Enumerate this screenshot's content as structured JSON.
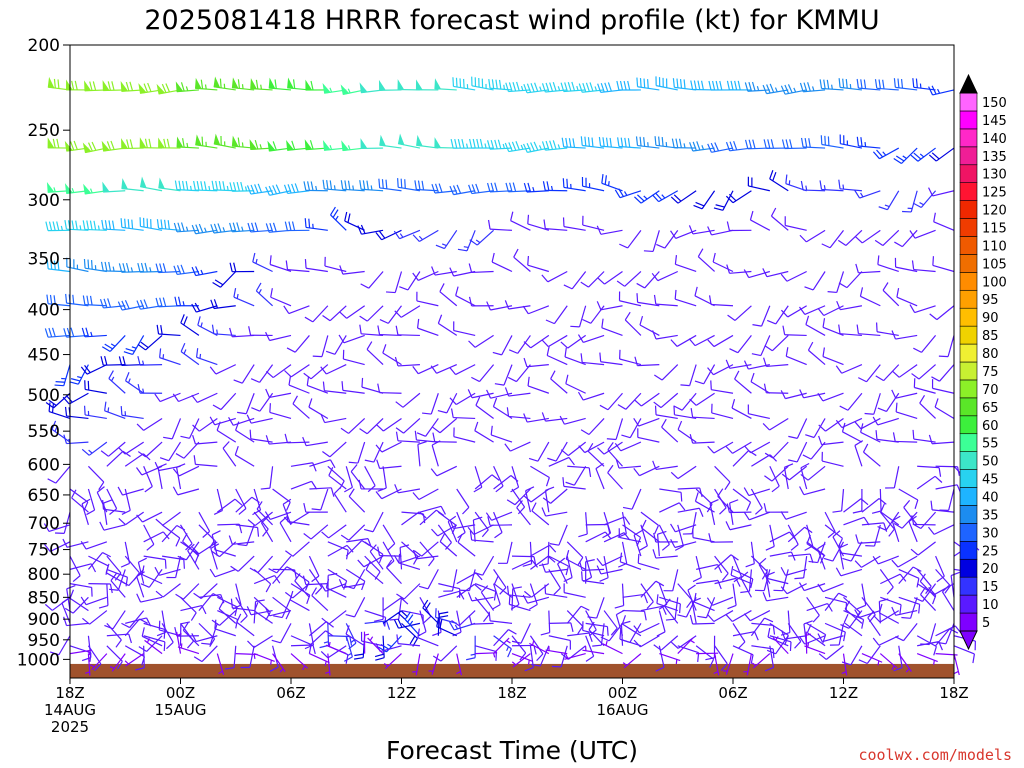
{
  "chart_data": {
    "type": "wind_barb_time_height",
    "title": "2025081418 HRRR forecast wind profile (kt) for KMMU",
    "xlabel": "Forecast Time (UTC)",
    "ylabel": "",
    "units": "kt",
    "y_ticks": [
      "200",
      "250",
      "300",
      "350",
      "400",
      "450",
      "500",
      "550",
      "600",
      "650",
      "700",
      "750",
      "800",
      "850",
      "900",
      "950",
      "1000"
    ],
    "y_levels": [
      200,
      250,
      300,
      350,
      400,
      450,
      500,
      550,
      600,
      650,
      700,
      750,
      800,
      850,
      900,
      950,
      1000
    ],
    "y_axis": "log-pressure, inverted (hPa)",
    "ylim": [
      200,
      1050
    ],
    "x_ticks": [
      {
        "hour": 0,
        "line1": "18Z",
        "line2": "14AUG",
        "line3": "2025"
      },
      {
        "hour": 6,
        "line1": "00Z",
        "line2": "15AUG",
        "line3": ""
      },
      {
        "hour": 12,
        "line1": "06Z",
        "line2": "",
        "line3": ""
      },
      {
        "hour": 18,
        "line1": "12Z",
        "line2": "",
        "line3": ""
      },
      {
        "hour": 24,
        "line1": "18Z",
        "line2": "",
        "line3": ""
      },
      {
        "hour": 30,
        "line1": "00Z",
        "line2": "16AUG",
        "line3": ""
      },
      {
        "hour": 36,
        "line1": "06Z",
        "line2": "",
        "line3": ""
      },
      {
        "hour": 42,
        "line1": "12Z",
        "line2": "",
        "line3": ""
      },
      {
        "hour": 48,
        "line1": "18Z",
        "line2": "",
        "line3": ""
      }
    ],
    "xlim_hours": [
      0,
      48
    ],
    "levels_hpa": [
      225,
      262,
      293,
      325,
      362,
      396,
      428,
      462,
      498,
      532,
      566,
      603,
      640,
      680,
      703,
      735,
      763,
      790,
      820,
      850,
      880,
      910,
      940,
      965,
      985
    ],
    "speed_profile": [
      {
        "p": 225,
        "speeds": [
          68,
          68,
          62,
          50,
          45,
          42,
          38,
          35,
          25
        ]
      },
      {
        "p": 262,
        "speeds": [
          68,
          68,
          62,
          50,
          45,
          40,
          32,
          28,
          22
        ]
      },
      {
        "p": 293,
        "speeds": [
          55,
          48,
          40,
          32,
          28,
          25,
          20,
          15,
          12
        ]
      },
      {
        "p": 325,
        "speeds": [
          45,
          38,
          30,
          18,
          12,
          12,
          12,
          10,
          10
        ]
      },
      {
        "p": 362,
        "speeds": [
          38,
          32,
          12,
          10,
          12,
          12,
          12,
          12,
          12
        ]
      },
      {
        "p": 396,
        "speeds": [
          32,
          28,
          10,
          8,
          10,
          10,
          10,
          10,
          10
        ]
      },
      {
        "p": 428,
        "speeds": [
          30,
          20,
          8,
          8,
          10,
          10,
          10,
          10,
          10
        ]
      },
      {
        "p": 462,
        "speeds": [
          25,
          15,
          8,
          8,
          10,
          10,
          10,
          10,
          10
        ]
      },
      {
        "p": 498,
        "speeds": [
          22,
          12,
          8,
          10,
          10,
          10,
          10,
          10,
          10
        ]
      },
      {
        "p": 532,
        "speeds": [
          20,
          10,
          8,
          10,
          10,
          10,
          10,
          10,
          10
        ]
      },
      {
        "p": 566,
        "speeds": [
          15,
          8,
          8,
          10,
          10,
          10,
          10,
          8,
          8
        ]
      },
      {
        "p": 603,
        "speeds": [
          12,
          8,
          8,
          10,
          10,
          10,
          8,
          8,
          8
        ]
      },
      {
        "p": 640,
        "speeds": [
          10,
          8,
          8,
          10,
          10,
          10,
          8,
          8,
          8
        ]
      },
      {
        "p": 680,
        "speeds": [
          8,
          8,
          8,
          8,
          8,
          8,
          8,
          8,
          8
        ]
      },
      {
        "p": 703,
        "speeds": [
          8,
          8,
          8,
          8,
          8,
          8,
          8,
          8,
          8
        ]
      },
      {
        "p": 735,
        "speeds": [
          8,
          8,
          8,
          8,
          8,
          8,
          8,
          8,
          8
        ]
      },
      {
        "p": 763,
        "speeds": [
          8,
          8,
          8,
          8,
          8,
          8,
          8,
          8,
          8
        ]
      },
      {
        "p": 790,
        "speeds": [
          8,
          8,
          8,
          8,
          8,
          8,
          8,
          8,
          8
        ]
      },
      {
        "p": 820,
        "speeds": [
          8,
          8,
          8,
          8,
          8,
          8,
          8,
          8,
          8
        ]
      },
      {
        "p": 850,
        "speeds": [
          8,
          8,
          8,
          8,
          8,
          8,
          8,
          8,
          8
        ]
      },
      {
        "p": 880,
        "speeds": [
          8,
          8,
          8,
          12,
          8,
          8,
          8,
          8,
          8
        ]
      },
      {
        "p": 910,
        "speeds": [
          8,
          8,
          8,
          22,
          10,
          8,
          8,
          8,
          8
        ]
      },
      {
        "p": 940,
        "speeds": [
          8,
          8,
          8,
          25,
          12,
          8,
          8,
          8,
          8
        ]
      },
      {
        "p": 965,
        "speeds": [
          8,
          8,
          8,
          12,
          10,
          8,
          8,
          8,
          8
        ]
      },
      {
        "p": 985,
        "speeds": [
          5,
          5,
          5,
          5,
          5,
          5,
          5,
          5,
          5
        ]
      }
    ],
    "speed_profile_hours": [
      0,
      6,
      12,
      18,
      24,
      30,
      36,
      42,
      48
    ],
    "barb_hour_step": 1,
    "surface_pressure": 1012,
    "terrain_color": "#a0522d",
    "colorbar": {
      "ticks": [
        5,
        10,
        15,
        20,
        25,
        30,
        35,
        40,
        45,
        50,
        55,
        60,
        65,
        70,
        75,
        80,
        85,
        90,
        95,
        100,
        105,
        110,
        115,
        120,
        125,
        130,
        135,
        140,
        145,
        150
      ],
      "colors": [
        "#7f00ff",
        "#5a1aff",
        "#3333ff",
        "#0000e0",
        "#0a32ff",
        "#1e64ff",
        "#1c8cf0",
        "#1eb4ff",
        "#28d2f0",
        "#3ce6c8",
        "#3cff96",
        "#3cf03c",
        "#5ae628",
        "#8cf028",
        "#c8f032",
        "#f0f032",
        "#f0d200",
        "#ffbe00",
        "#ffa000",
        "#ff8c00",
        "#f06e00",
        "#f05a00",
        "#f03c00",
        "#f02800",
        "#ff1432",
        "#f01464",
        "#f01e96",
        "#ff28c8",
        "#ff00ff",
        "#ff64ff"
      ],
      "triangle_top_color": "#000000",
      "triangle_bottom_color": "#7f00ff"
    },
    "legend": "right colorbar",
    "grid": false
  },
  "credit": "coolwx.com/models"
}
